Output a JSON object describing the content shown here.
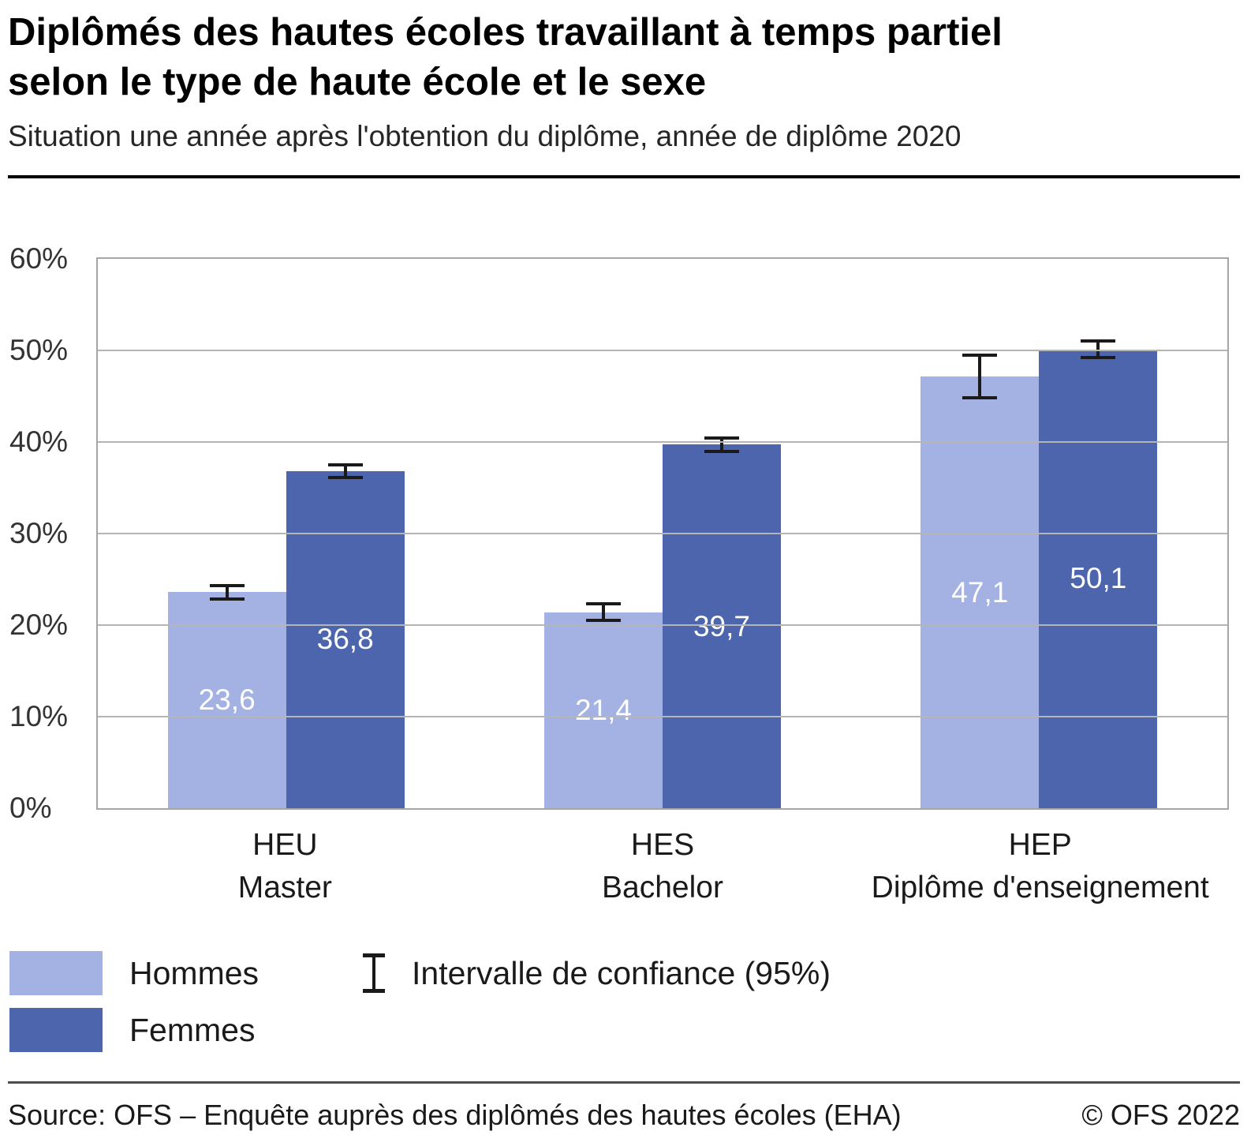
{
  "header": {
    "title_line1": "Diplômés des hautes écoles travaillant à temps partiel",
    "title_line2": "selon le type de haute école et le sexe",
    "subtitle": "Situation une année après l'obtention du diplôme, année de diplôme 2020"
  },
  "chart_data": {
    "type": "bar",
    "categories": [
      {
        "line1": "HEU",
        "line2": "Master"
      },
      {
        "line1": "HES",
        "line2": "Bachelor"
      },
      {
        "line1": "HEP",
        "line2": "Diplôme d'enseignement"
      }
    ],
    "series": [
      {
        "name": "Hommes",
        "color": "#a3b2e2",
        "values": [
          23.6,
          21.4,
          47.1
        ],
        "ci": [
          0.9,
          1.1,
          2.5
        ]
      },
      {
        "name": "Femmes",
        "color": "#4c65ad",
        "values": [
          36.8,
          39.7,
          50.1
        ],
        "ci": [
          0.9,
          0.9,
          1.1
        ]
      }
    ],
    "value_labels": [
      [
        "23,6",
        "21,4",
        "47,1"
      ],
      [
        "36,8",
        "39,7",
        "50,1"
      ]
    ],
    "ylim": [
      0,
      60
    ],
    "yticks": [
      "0%",
      "10%",
      "20%",
      "30%",
      "40%",
      "50%",
      "60%"
    ],
    "grid": "horizontal",
    "legend_ci": "Intervalle de confiance (95%)",
    "legend_position": "bottom-left"
  },
  "footer": {
    "source": "Source: OFS – Enquête auprès des diplômés des hautes écoles (EHA)",
    "copyright": "© OFS 2022"
  }
}
